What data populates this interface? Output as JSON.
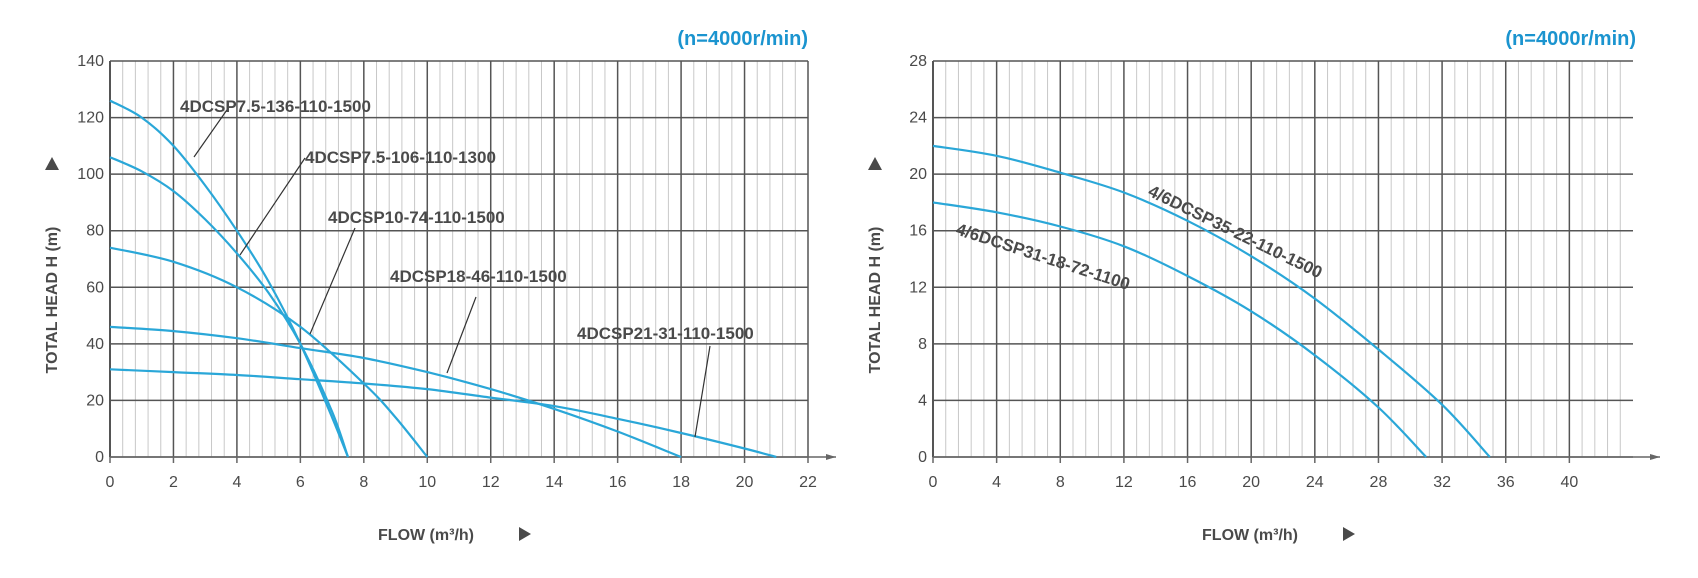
{
  "colors": {
    "curve": "#2aa7d8",
    "major_grid": "#555555",
    "minor_grid": "#c8c8c8",
    "axis": "#666666",
    "speed": "#1b94cf",
    "text": "#4a4a4a"
  },
  "chart_data": [
    {
      "type": "line",
      "speed_label": "(n=4000r/min)",
      "xlabel": "FLOW (m³/h)",
      "ylabel": "TOTAL HEAD H (m)",
      "xlim": [
        0,
        22
      ],
      "ylim": [
        0,
        140
      ],
      "x_ticks": [
        0,
        2,
        4,
        6,
        8,
        10,
        12,
        14,
        16,
        18,
        20,
        22
      ],
      "y_ticks": [
        0,
        20,
        40,
        60,
        80,
        100,
        120,
        140
      ],
      "grid": true,
      "series": [
        {
          "name": "4DCSP7.5-136-110-1500",
          "x": [
            0,
            1,
            2,
            3,
            4,
            5,
            6,
            7,
            7.5
          ],
          "y": [
            126,
            120,
            110,
            96,
            80,
            62,
            40,
            14,
            0
          ]
        },
        {
          "name": "4DCSP7.5-106-110-1300",
          "x": [
            0,
            1,
            2,
            3,
            4,
            5,
            6,
            7,
            7.5
          ],
          "y": [
            106,
            101,
            94,
            84,
            72,
            58,
            40,
            16,
            0
          ]
        },
        {
          "name": "4DCSP10-74-110-1500",
          "x": [
            0,
            2,
            4,
            6,
            8,
            9,
            10
          ],
          "y": [
            74,
            69,
            60,
            46,
            26,
            14,
            0
          ]
        },
        {
          "name": "4DCSP18-46-110-1500",
          "x": [
            0,
            2,
            4,
            6,
            8,
            10,
            12,
            14,
            16,
            18
          ],
          "y": [
            46,
            44.5,
            42,
            38.5,
            35,
            30,
            24,
            17,
            9,
            0
          ]
        },
        {
          "name": "4DCSP21-31-110-1500",
          "x": [
            0,
            2,
            4,
            6,
            8,
            10,
            12,
            14,
            16,
            18,
            20,
            21
          ],
          "y": [
            31,
            30,
            29,
            27.5,
            26,
            24,
            21,
            18,
            13.5,
            8.5,
            3,
            0
          ]
        }
      ]
    },
    {
      "type": "line",
      "speed_label": "(n=4000r/min)",
      "xlabel": "FLOW (m³/h)",
      "ylabel": "TOTAL HEAD H (m)",
      "xlim": [
        0,
        44
      ],
      "ylim": [
        0,
        28
      ],
      "x_ticks": [
        0,
        4,
        8,
        12,
        16,
        20,
        24,
        28,
        32,
        36,
        40
      ],
      "y_ticks": [
        0,
        4,
        8,
        12,
        16,
        20,
        24,
        28
      ],
      "grid": true,
      "series": [
        {
          "name": "4/6DCSP35-22-110-1500",
          "x": [
            0,
            4,
            8,
            12,
            16,
            20,
            24,
            28,
            32,
            35
          ],
          "y": [
            22,
            21.3,
            20.1,
            18.7,
            16.7,
            14.2,
            11.2,
            7.6,
            3.7,
            0
          ]
        },
        {
          "name": "4/6DCSP31-18-72-1100",
          "x": [
            0,
            4,
            8,
            12,
            16,
            20,
            24,
            28,
            31
          ],
          "y": [
            18,
            17.3,
            16.3,
            14.9,
            12.8,
            10.3,
            7.2,
            3.5,
            0
          ]
        }
      ]
    }
  ]
}
